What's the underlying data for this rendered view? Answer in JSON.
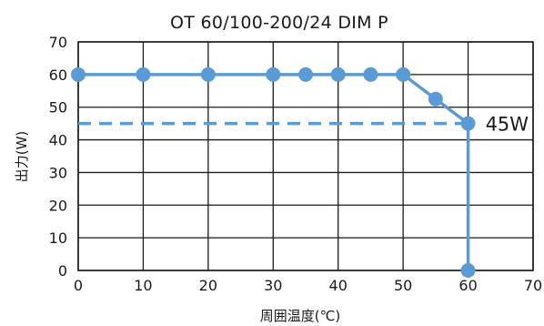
{
  "chart_data": {
    "type": "line",
    "title": "OT 60/100-200/24 DIM P",
    "xlabel": "周囲温度(℃)",
    "ylabel": "出力(W)",
    "xlim": [
      0,
      70
    ],
    "ylim": [
      0,
      70
    ],
    "xticks": [
      0,
      10,
      20,
      30,
      40,
      50,
      60,
      70
    ],
    "yticks": [
      0,
      10,
      20,
      30,
      40,
      50,
      60,
      70
    ],
    "grid": true,
    "series": [
      {
        "style": "solid",
        "color": "#5b9bd5",
        "markers": true,
        "points": [
          {
            "x": 0,
            "y": 60
          },
          {
            "x": 10,
            "y": 60
          },
          {
            "x": 20,
            "y": 60
          },
          {
            "x": 30,
            "y": 60
          },
          {
            "x": 35,
            "y": 60
          },
          {
            "x": 40,
            "y": 60
          },
          {
            "x": 45,
            "y": 60
          },
          {
            "x": 50,
            "y": 60
          },
          {
            "x": 55,
            "y": 52.5
          },
          {
            "x": 60,
            "y": 45
          },
          {
            "x": 60,
            "y": 0
          }
        ]
      },
      {
        "style": "dashed",
        "color": "#5b9bd5",
        "markers": false,
        "points": [
          {
            "x": 0,
            "y": 45
          },
          {
            "x": 60,
            "y": 45
          }
        ]
      }
    ],
    "annotations": [
      {
        "text": "45W",
        "x": 60,
        "y": 45
      }
    ]
  }
}
